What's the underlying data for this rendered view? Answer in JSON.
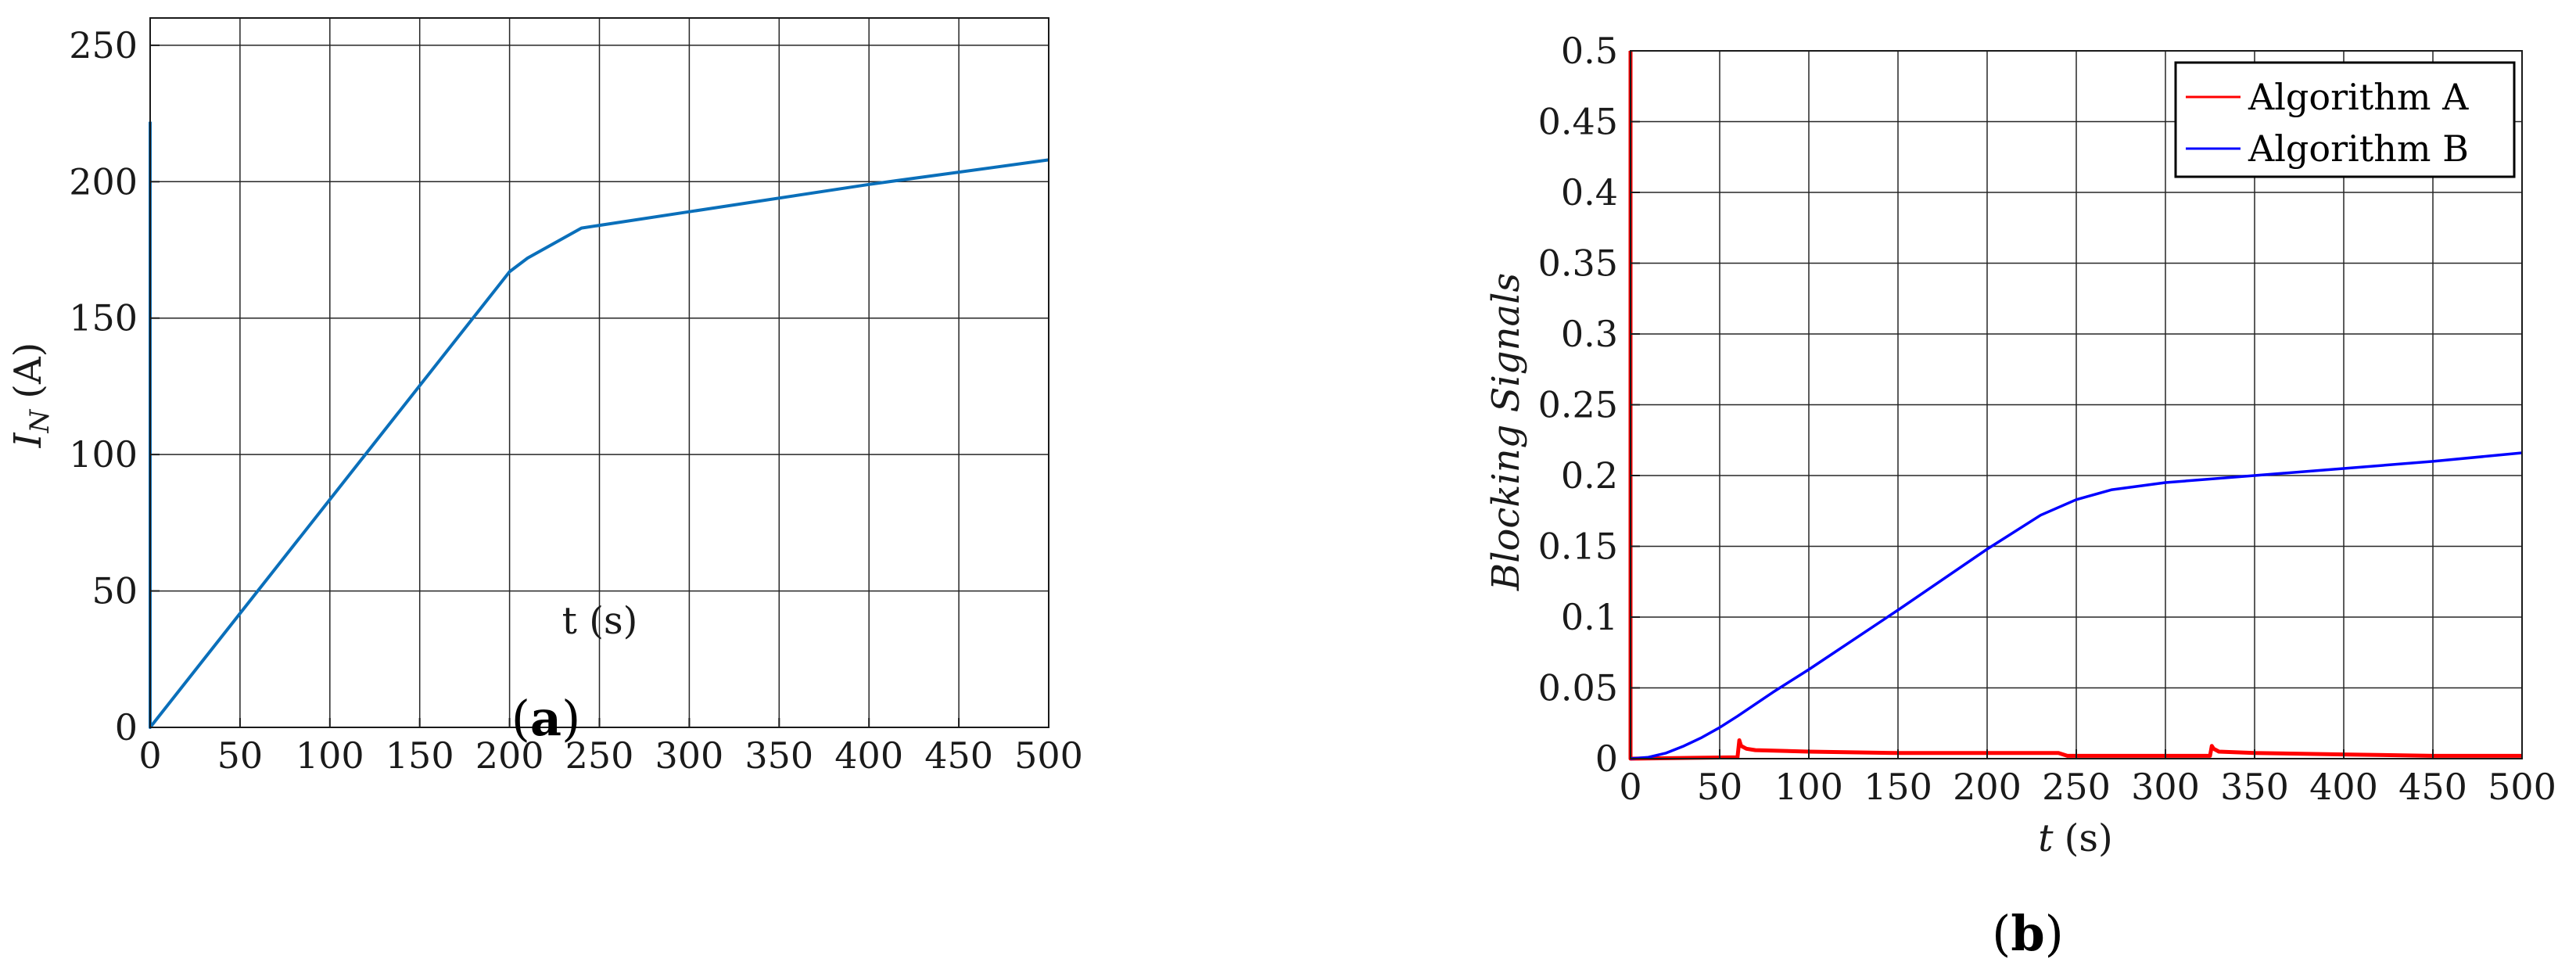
{
  "chart_data": [
    {
      "type": "line",
      "panel_label": "a",
      "xlabel": "t (s)",
      "ylabel_main": "I",
      "ylabel_sub": "N",
      "ylabel_unit": "(A)",
      "xlim": [
        0,
        500
      ],
      "ylim": [
        0,
        260
      ],
      "xticks": [
        0,
        50,
        100,
        150,
        200,
        250,
        300,
        350,
        400,
        450,
        500
      ],
      "yticks": [
        0,
        50,
        100,
        150,
        200,
        250
      ],
      "grid": true,
      "series": [
        {
          "color": "#0a6fba",
          "x": [
            0,
            0,
            0,
            200,
            210,
            240,
            300,
            400,
            500
          ],
          "y": [
            222,
            0,
            0,
            167,
            172,
            183,
            189,
            199,
            208
          ]
        }
      ]
    },
    {
      "type": "line",
      "panel_label": "b",
      "xlabel_var": "t",
      "xlabel_unit": "(s)",
      "ylabel": "Blocking Signals",
      "xlim": [
        0,
        500
      ],
      "ylim": [
        0,
        0.5
      ],
      "xticks": [
        0,
        50,
        100,
        150,
        200,
        250,
        300,
        350,
        400,
        450,
        500
      ],
      "yticks": [
        0,
        0.05,
        0.1,
        0.15,
        0.2,
        0.25,
        0.3,
        0.35,
        0.4,
        0.45,
        0.5
      ],
      "grid": true,
      "legend_position": "top-right",
      "series": [
        {
          "name": "Algorithm A",
          "color": "#ff0000",
          "x": [
            0,
            0,
            0,
            60,
            61,
            62,
            65,
            70,
            100,
            150,
            200,
            240,
            245,
            300,
            325,
            326,
            327,
            330,
            350,
            400,
            450,
            500
          ],
          "y": [
            0.5,
            0,
            0,
            0.001,
            0.013,
            0.009,
            0.007,
            0.006,
            0.005,
            0.004,
            0.004,
            0.004,
            0.002,
            0.002,
            0.002,
            0.009,
            0.007,
            0.005,
            0.004,
            0.003,
            0.002,
            0.002
          ]
        },
        {
          "name": "Algorithm B",
          "color": "#0000ff",
          "x": [
            0,
            10,
            20,
            30,
            40,
            50,
            60,
            80,
            100,
            150,
            200,
            230,
            250,
            270,
            300,
            350,
            400,
            450,
            500
          ],
          "y": [
            0,
            0.001,
            0.004,
            0.009,
            0.015,
            0.022,
            0.03,
            0.047,
            0.063,
            0.105,
            0.148,
            0.172,
            0.183,
            0.19,
            0.195,
            0.2,
            0.205,
            0.21,
            0.216
          ]
        }
      ]
    }
  ]
}
